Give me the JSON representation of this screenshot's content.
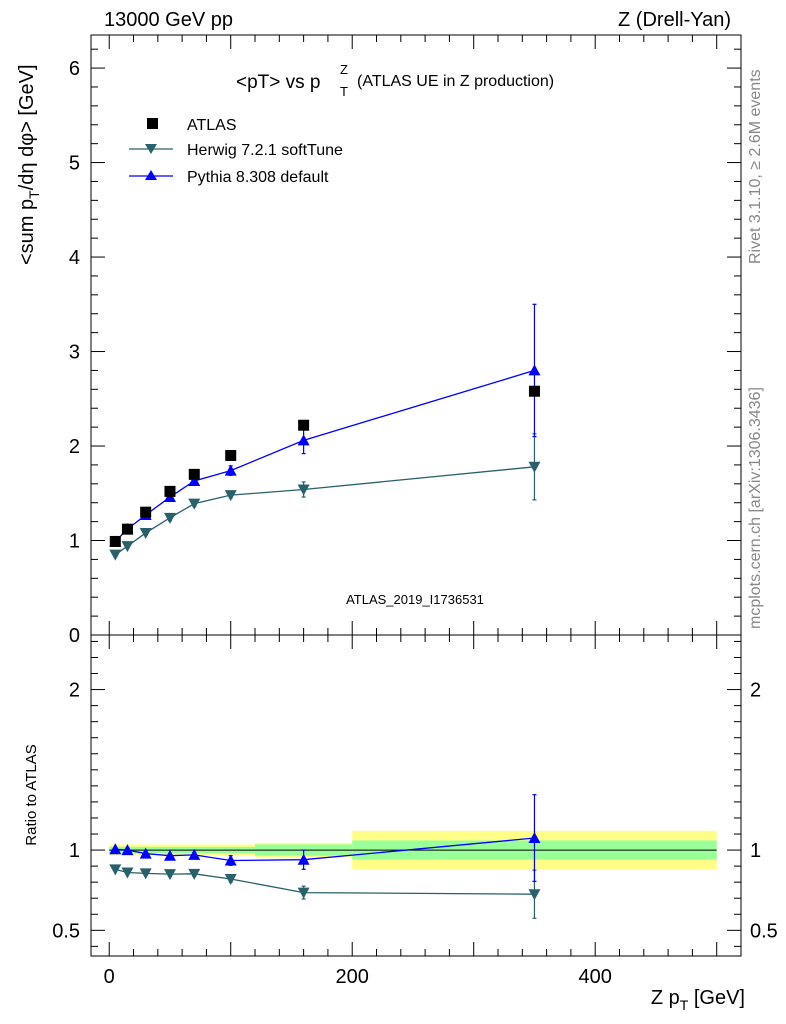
{
  "header": {
    "left": "13000 GeV pp",
    "right": "Z (Drell-Yan)"
  },
  "side_text": {
    "top": "Rivet 3.1.10, ≥ 2.6M events",
    "bottom": "mcplots.cern.ch [arXiv:1306.3436]"
  },
  "analysis_label": "ATLAS_2019_I1736531",
  "colors": {
    "atlas": "#000000",
    "herwig": "#2a6069",
    "pythia": "#0000ff",
    "band_inner": "#99ff99",
    "band_outer": "#ffff88"
  },
  "chart_data": [
    {
      "type": "line",
      "title": "<pT> vs p_T^Z (ATLAS UE in Z production)",
      "title_main": "<pT> vs p",
      "title_sup": "Z",
      "title_sub": "T",
      "title_tail": "(ATLAS UE in Z production)",
      "ylabel": "<sum p_T/dη dφ> [GeV]",
      "ylabel_parts": {
        "a": "<sum p",
        "sub": "T",
        "b": "/dη dφ> [GeV]"
      },
      "xlim": [
        -15,
        520
      ],
      "ylim": [
        0,
        6.35
      ],
      "yticks": [
        0,
        1,
        2,
        3,
        4,
        5,
        6
      ],
      "ytick_labels": [
        "0",
        "1",
        "2",
        "3",
        "4",
        "5",
        "6"
      ],
      "legend": {
        "placement": "top-left",
        "entries": [
          "ATLAS",
          "Herwig 7.2.1 softTune",
          "Pythia 8.308 default"
        ]
      },
      "series": [
        {
          "name": "ATLAS",
          "marker": "square",
          "x": [
            5,
            15,
            30,
            50,
            70,
            100,
            160,
            350
          ],
          "y": [
            0.99,
            1.12,
            1.3,
            1.52,
            1.7,
            1.9,
            2.22,
            2.58
          ]
        },
        {
          "name": "Herwig 7.2.1 softTune",
          "marker": "triangle-down",
          "x": [
            5,
            15,
            30,
            50,
            70,
            100,
            160,
            350
          ],
          "y": [
            0.85,
            0.94,
            1.08,
            1.24,
            1.39,
            1.48,
            1.54,
            1.78
          ],
          "err": [
            0.02,
            0.02,
            0.02,
            0.03,
            0.03,
            0.03,
            0.08,
            0.35
          ]
        },
        {
          "name": "Pythia 8.308 default",
          "marker": "triangle-up",
          "x": [
            5,
            15,
            30,
            50,
            70,
            100,
            160,
            350
          ],
          "y": [
            0.99,
            1.12,
            1.27,
            1.46,
            1.63,
            1.74,
            2.06,
            2.8
          ],
          "err": [
            0.02,
            0.02,
            0.02,
            0.03,
            0.03,
            0.05,
            0.14,
            0.7
          ]
        }
      ]
    },
    {
      "type": "line",
      "ylabel": "Ratio to ATLAS",
      "xlabel": "Z p_T [GeV]",
      "xlabel_parts": {
        "a": "Z p",
        "sub": "T",
        "b": " [GeV]"
      },
      "xlim": [
        -15,
        520
      ],
      "ylim": [
        0.34,
        2.34
      ],
      "yticks": [
        0.5,
        1,
        2
      ],
      "ytick_labels": [
        "0.5",
        "1",
        "2"
      ],
      "xticks": [
        0,
        200,
        400
      ],
      "xtick_labels": [
        "0",
        "200",
        "400"
      ],
      "bands": [
        {
          "x": [
            0,
            120
          ],
          "inner": [
            0.98,
            1.02
          ],
          "outer": [
            0.965,
            1.035
          ]
        },
        {
          "x": [
            120,
            200
          ],
          "inner": [
            0.965,
            1.035
          ],
          "outer": [
            0.955,
            1.045
          ]
        },
        {
          "x": [
            200,
            500
          ],
          "inner": [
            0.94,
            1.06
          ],
          "outer": [
            0.88,
            1.12
          ]
        }
      ],
      "series": [
        {
          "name": "Herwig 7.2.1 softTune",
          "marker": "triangle-down",
          "x": [
            5,
            15,
            30,
            50,
            70,
            100,
            160,
            350
          ],
          "y": [
            0.88,
            0.86,
            0.855,
            0.85,
            0.852,
            0.82,
            0.735,
            0.725
          ],
          "err": [
            0.01,
            0.01,
            0.01,
            0.015,
            0.015,
            0.02,
            0.04,
            0.15
          ]
        },
        {
          "name": "Pythia 8.308 default",
          "marker": "triangle-up",
          "x": [
            5,
            15,
            30,
            50,
            70,
            100,
            160,
            350
          ],
          "y": [
            1.005,
            1.0,
            0.978,
            0.965,
            0.97,
            0.935,
            0.94,
            1.075
          ],
          "err": [
            0.01,
            0.01,
            0.01,
            0.01,
            0.015,
            0.03,
            0.06,
            0.27
          ]
        }
      ]
    }
  ]
}
